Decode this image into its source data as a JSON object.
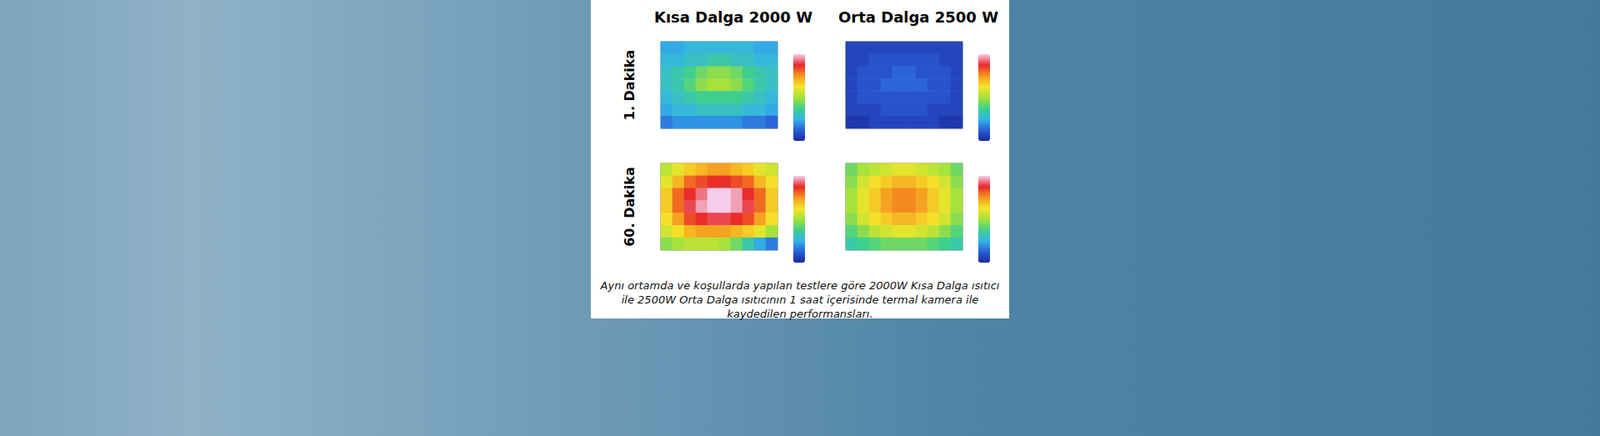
{
  "chart_data": {
    "type": "heatmap",
    "columns": [
      "Kısa Dalga 2000 W",
      "Orta Dalga 2500 W"
    ],
    "rows": [
      "1. Dakika",
      "60. Dakika"
    ],
    "caption": "Aynı ortamda ve koşullarda yapılan testlere göre 2000W Kısa Dalga ısıtıcı ile 2500W Orta Dalga ısıtıcının 1 saat içerisinde termal kamera ile kaydedilen performansları.",
    "tick_labels": false,
    "colorbar": {
      "min": 20,
      "max": 50
    },
    "cells": [
      [
        [
          [
            27,
            27,
            28,
            28,
            28,
            28,
            28,
            28,
            27,
            27
          ],
          [
            28,
            28,
            29,
            29,
            30,
            30,
            29,
            29,
            28,
            28
          ],
          [
            29,
            30,
            31,
            33,
            34,
            34,
            33,
            31,
            30,
            29
          ],
          [
            29,
            30,
            32,
            34,
            35,
            35,
            34,
            32,
            30,
            29
          ],
          [
            28,
            29,
            30,
            31,
            31,
            31,
            31,
            30,
            29,
            28
          ],
          [
            27,
            28,
            28,
            29,
            29,
            29,
            29,
            28,
            28,
            27
          ],
          [
            25,
            26,
            26,
            26,
            26,
            26,
            26,
            25,
            25,
            24
          ]
        ],
        [
          [
            22,
            22,
            22,
            22,
            22,
            22,
            22,
            22,
            22,
            22
          ],
          [
            22,
            22,
            23,
            23,
            23,
            23,
            23,
            23,
            22,
            22
          ],
          [
            22,
            23,
            23,
            23,
            24,
            24,
            23,
            23,
            23,
            22
          ],
          [
            22,
            23,
            23,
            24,
            24,
            24,
            24,
            23,
            23,
            22
          ],
          [
            22,
            23,
            23,
            23,
            23,
            23,
            23,
            23,
            23,
            22
          ],
          [
            22,
            22,
            22,
            23,
            23,
            23,
            23,
            22,
            22,
            22
          ],
          [
            21,
            21,
            22,
            22,
            22,
            22,
            22,
            22,
            21,
            21
          ]
        ]
      ],
      [
        [
          [
            36,
            38,
            40,
            41,
            42,
            42,
            41,
            40,
            38,
            37
          ],
          [
            38,
            41,
            44,
            45,
            46,
            46,
            45,
            44,
            41,
            39
          ],
          [
            40,
            44,
            46,
            48,
            50,
            50,
            49,
            46,
            44,
            40
          ],
          [
            40,
            44,
            47,
            49,
            50,
            50,
            49,
            47,
            44,
            40
          ],
          [
            39,
            42,
            45,
            46,
            47,
            47,
            46,
            45,
            42,
            39
          ],
          [
            37,
            39,
            41,
            42,
            42,
            42,
            41,
            40,
            38,
            35
          ],
          [
            34,
            35,
            36,
            36,
            36,
            35,
            33,
            30,
            27,
            25
          ]
        ],
        [
          [
            33,
            35,
            36,
            37,
            38,
            38,
            37,
            36,
            35,
            33
          ],
          [
            34,
            37,
            39,
            40,
            41,
            41,
            40,
            39,
            37,
            34
          ],
          [
            35,
            38,
            40,
            42,
            43,
            43,
            42,
            40,
            38,
            35
          ],
          [
            35,
            38,
            40,
            42,
            43,
            43,
            42,
            40,
            38,
            35
          ],
          [
            34,
            37,
            39,
            40,
            41,
            41,
            40,
            39,
            37,
            34
          ],
          [
            32,
            34,
            36,
            37,
            38,
            38,
            37,
            36,
            34,
            32
          ],
          [
            30,
            31,
            32,
            33,
            33,
            33,
            33,
            32,
            31,
            30
          ]
        ]
      ]
    ]
  }
}
